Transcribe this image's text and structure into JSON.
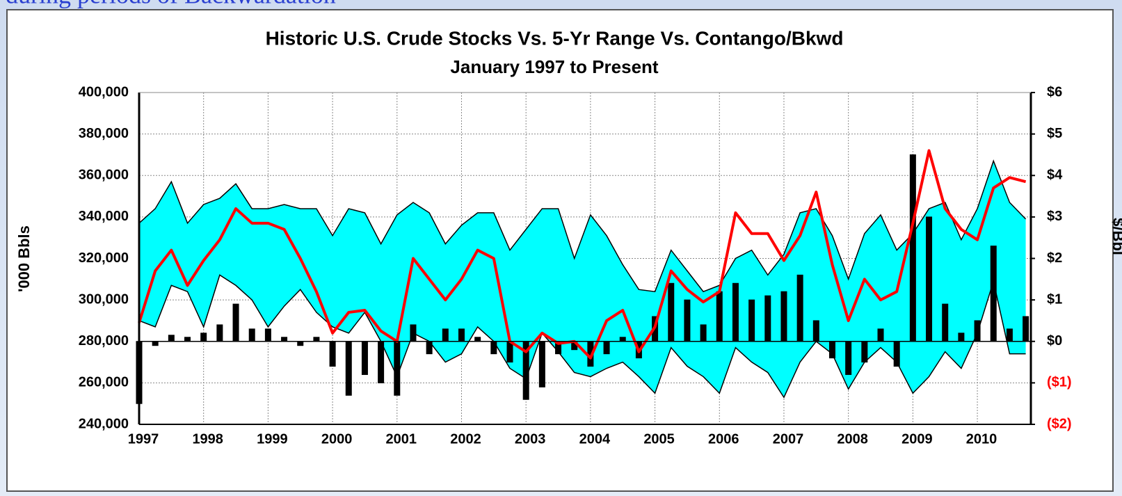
{
  "slide_heading": "during periods of Backwardation",
  "chart_data": {
    "type": "combo",
    "title": "Historic U.S. Crude Stocks Vs. 5-Yr Range Vs. Contango/Bkwd",
    "subtitle": "January 1997 to Present",
    "y_label": "'000 Bbls",
    "y2_label": "$/Bbl",
    "grid": true,
    "band_fill": "#00ffff",
    "negative_label_color": "#ff0000",
    "xlim": [
      1997,
      2010.83
    ],
    "xticks": [
      1997,
      1998,
      1999,
      2000,
      2001,
      2002,
      2003,
      2004,
      2005,
      2006,
      2007,
      2008,
      2009,
      2010
    ],
    "ylim": [
      240000,
      400000
    ],
    "yticks": [
      {
        "value": 240000,
        "label": "240,000"
      },
      {
        "value": 260000,
        "label": "260,000"
      },
      {
        "value": 280000,
        "label": "280,000"
      },
      {
        "value": 300000,
        "label": "300,000"
      },
      {
        "value": 320000,
        "label": "320,000"
      },
      {
        "value": 340000,
        "label": "340,000"
      },
      {
        "value": 360000,
        "label": "360,000"
      },
      {
        "value": 380000,
        "label": "380,000"
      },
      {
        "value": 400000,
        "label": "400,000"
      }
    ],
    "y2lim": [
      -2,
      6
    ],
    "y2ticks": [
      {
        "value": -2,
        "label": "($2)"
      },
      {
        "value": -1,
        "label": "($1)"
      },
      {
        "value": 0,
        "label": "$0"
      },
      {
        "value": 1,
        "label": "$1"
      },
      {
        "value": 2,
        "label": "$2"
      },
      {
        "value": 3,
        "label": "$3"
      },
      {
        "value": 4,
        "label": "$4"
      },
      {
        "value": 5,
        "label": "$5"
      },
      {
        "value": 6,
        "label": "$6"
      }
    ],
    "x": [
      1997,
      1997.25,
      1997.5,
      1997.75,
      1998,
      1998.25,
      1998.5,
      1998.75,
      1999,
      1999.25,
      1999.5,
      1999.75,
      2000,
      2000.25,
      2000.5,
      2000.75,
      2001,
      2001.25,
      2001.5,
      2001.75,
      2002,
      2002.25,
      2002.5,
      2002.75,
      2003,
      2003.25,
      2003.5,
      2003.75,
      2004,
      2004.25,
      2004.5,
      2004.75,
      2005,
      2005.25,
      2005.5,
      2005.75,
      2006,
      2006.25,
      2006.5,
      2006.75,
      2007,
      2007.25,
      2007.5,
      2007.75,
      2008,
      2008.25,
      2008.5,
      2008.75,
      2009,
      2009.25,
      2009.5,
      2009.75,
      2010,
      2010.25,
      2010.5,
      2010.75
    ],
    "series": [
      {
        "type": "band-edge",
        "color": "#000000",
        "values": [
          337000,
          344000,
          357000,
          337000,
          346000,
          349000,
          356000,
          344000,
          344000,
          346000,
          344000,
          344000,
          331000,
          344000,
          342000,
          327000,
          341000,
          347000,
          342000,
          327000,
          336000,
          342000,
          342000,
          324000,
          334000,
          344000,
          344000,
          320000,
          341000,
          331000,
          317000,
          305000,
          304000,
          324000,
          314000,
          304000,
          307000,
          320000,
          324000,
          312000,
          322000,
          342000,
          344000,
          331000,
          310000,
          332000,
          341000,
          324000,
          332000,
          344000,
          347000,
          329000,
          344000,
          367000,
          347000,
          339000
        ]
      },
      {
        "type": "band-edge",
        "color": "#000000",
        "values": [
          290000,
          287000,
          307000,
          304000,
          287000,
          312000,
          307000,
          300000,
          287000,
          297000,
          305000,
          294000,
          287000,
          284000,
          294000,
          280000,
          263000,
          284000,
          280000,
          270000,
          274000,
          287000,
          280000,
          267000,
          262000,
          284000,
          275000,
          265000,
          263000,
          267000,
          270000,
          263000,
          255000,
          277000,
          268000,
          263000,
          255000,
          277000,
          270000,
          265000,
          253000,
          270000,
          280000,
          274000,
          257000,
          270000,
          277000,
          270000,
          255000,
          263000,
          275000,
          267000,
          284000,
          309000,
          274000,
          274000
        ]
      },
      {
        "type": "line",
        "color": "#ff0000",
        "values": [
          289000,
          314000,
          324000,
          307000,
          319000,
          329000,
          344000,
          337000,
          337000,
          334000,
          320000,
          304000,
          284000,
          294000,
          295000,
          285000,
          280000,
          320000,
          310000,
          300000,
          310000,
          324000,
          320000,
          280000,
          275000,
          284000,
          279000,
          280000,
          272000,
          290000,
          295000,
          275000,
          287000,
          314000,
          305000,
          299000,
          304000,
          342000,
          332000,
          332000,
          319000,
          331000,
          352000,
          317000,
          290000,
          310000,
          300000,
          304000,
          337000,
          372000,
          344000,
          334000,
          329000,
          354000,
          359000,
          357000
        ]
      },
      {
        "type": "bar",
        "axis": "y2",
        "color": "#000000",
        "values": [
          -1.5,
          -0.1,
          0.15,
          0.1,
          0.2,
          0.4,
          0.9,
          0.3,
          0.3,
          0.1,
          -0.1,
          0.1,
          -0.6,
          -1.3,
          -0.8,
          -1.0,
          -1.3,
          0.4,
          -0.3,
          0.3,
          0.3,
          0.1,
          -0.3,
          -0.5,
          -1.4,
          -1.1,
          -0.3,
          -0.2,
          -0.6,
          -0.3,
          0.1,
          -0.4,
          0.6,
          1.4,
          1.0,
          0.4,
          1.2,
          1.4,
          1.0,
          1.1,
          1.2,
          1.6,
          0.5,
          -0.4,
          -0.8,
          -0.5,
          0.3,
          -0.6,
          4.5,
          3.0,
          0.9,
          0.2,
          0.5,
          2.3,
          0.3,
          0.6
        ]
      }
    ]
  }
}
